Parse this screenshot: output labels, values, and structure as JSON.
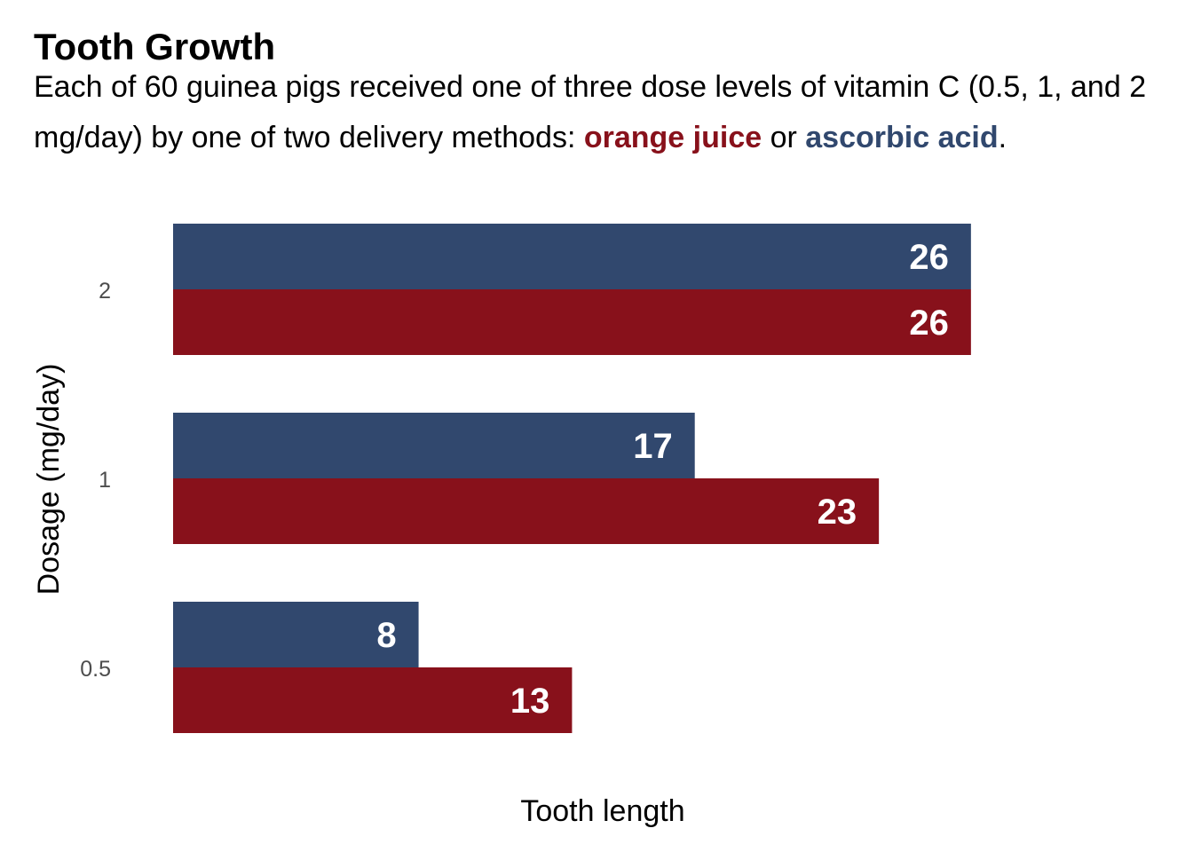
{
  "chart_data": {
    "type": "bar",
    "orientation": "horizontal",
    "title": "Tooth Growth",
    "subtitle": {
      "pre": "Each of 60 guinea pigs received one of three dose levels of vitamin C (0.5, 1, and 2 mg/day) by one of two delivery methods: ",
      "series_a": "orange juice",
      "mid": " or ",
      "series_b": "ascorbic acid",
      "post": "."
    },
    "xlabel": "Tooth length",
    "ylabel": "Dosage (mg/day)",
    "categories": [
      "2",
      "1",
      "0.5"
    ],
    "series": [
      {
        "name": "ascorbic acid",
        "color": "#31486e",
        "values": [
          26,
          17,
          8
        ]
      },
      {
        "name": "orange juice",
        "color": "#88111b",
        "values": [
          26,
          23,
          13
        ]
      }
    ],
    "xlim": [
      0,
      28
    ],
    "grid": false,
    "legend": "none",
    "data_labels": true
  }
}
